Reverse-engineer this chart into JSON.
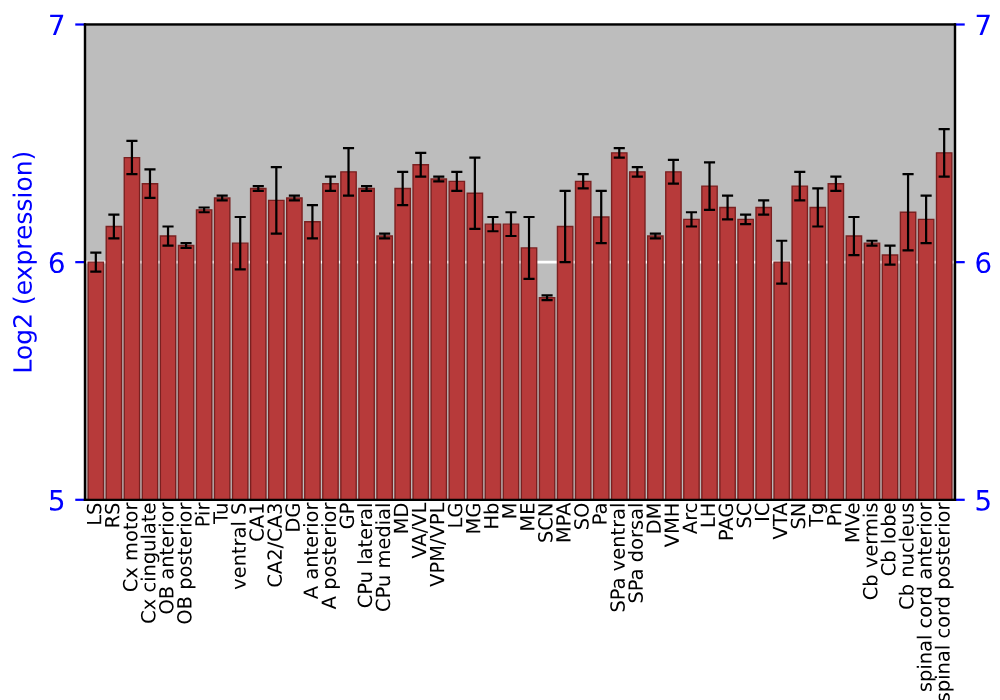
{
  "chart_data": {
    "type": "bar",
    "ylabel": "Log2 (expression)",
    "categories": [
      "LS",
      "RS",
      "Cx motor",
      "Cx cingulate",
      "OB anterior",
      "OB posterior",
      "Pir",
      "Tu",
      "ventral S",
      "CA1",
      "CA2/CA3",
      "DG",
      "A anterior",
      "A posterior",
      "GP",
      "CPu lateral",
      "CPu medial",
      "MD",
      "VA/VL",
      "VPM/VPL",
      "LG",
      "MG",
      "Hb",
      "M",
      "ME",
      "SCN",
      "MPA",
      "SO",
      "Pa",
      "SPa ventral",
      "SPa dorsal",
      "DM",
      "VMH",
      "Arc",
      "LH",
      "PAG",
      "SC",
      "IC",
      "VTA",
      "SN",
      "Tg",
      "Pn",
      "MVe",
      "Cb vermis",
      "Cb lobe",
      "Cb nucleus",
      "spinal cord anterior",
      "spinal cord posterior"
    ],
    "values": [
      6.0,
      6.15,
      6.44,
      6.33,
      6.11,
      6.07,
      6.22,
      6.27,
      6.08,
      6.31,
      6.26,
      6.27,
      6.17,
      6.33,
      6.38,
      6.31,
      6.11,
      6.31,
      6.41,
      6.35,
      6.34,
      6.29,
      6.16,
      6.16,
      6.06,
      5.85,
      6.15,
      6.34,
      6.19,
      6.46,
      6.38,
      6.11,
      6.38,
      6.18,
      6.32,
      6.23,
      6.18,
      6.23,
      6.0,
      6.32,
      6.23,
      6.33,
      6.11,
      6.08,
      6.03,
      6.21,
      6.18,
      6.46
    ],
    "errors": [
      0.04,
      0.05,
      0.07,
      0.06,
      0.04,
      0.01,
      0.01,
      0.01,
      0.11,
      0.01,
      0.14,
      0.01,
      0.07,
      0.03,
      0.1,
      0.01,
      0.01,
      0.07,
      0.05,
      0.01,
      0.04,
      0.15,
      0.03,
      0.05,
      0.13,
      0.01,
      0.15,
      0.03,
      0.11,
      0.02,
      0.02,
      0.01,
      0.05,
      0.03,
      0.1,
      0.05,
      0.02,
      0.03,
      0.09,
      0.06,
      0.08,
      0.03,
      0.08,
      0.01,
      0.04,
      0.16,
      0.1,
      0.1
    ],
    "color": "#b73a3a",
    "ylim": [
      5,
      7
    ],
    "yticks": [
      5,
      6,
      7
    ],
    "y2lim": [
      5,
      7
    ],
    "y2ticks": [
      5,
      6,
      7
    ],
    "grid": "y"
  }
}
